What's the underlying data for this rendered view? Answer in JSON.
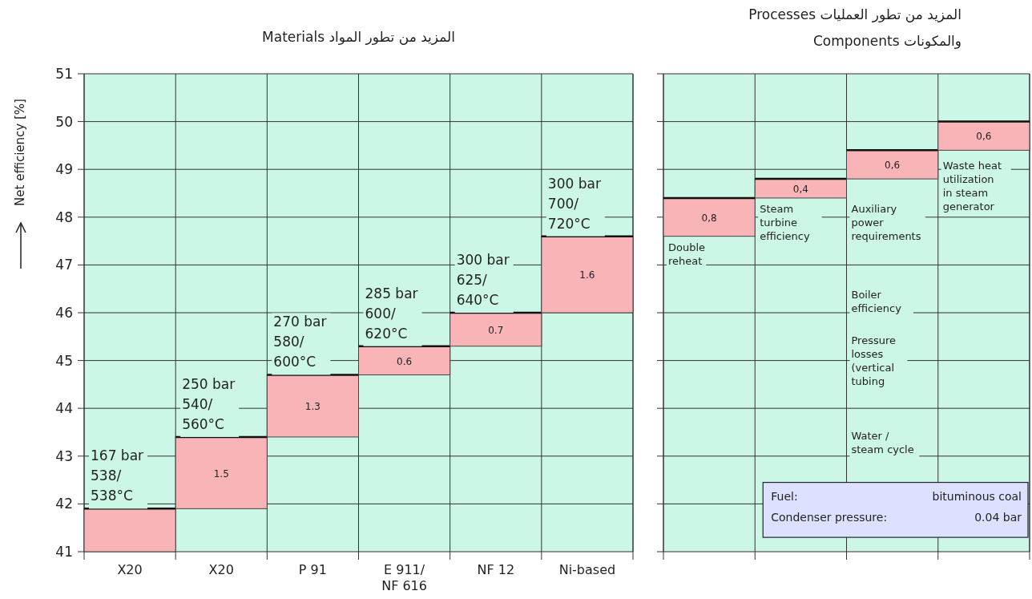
{
  "chart_data": [
    {
      "type": "bar",
      "title": "المزيد من تطور المواد Materials",
      "ylabel": "Net efficiency [%]",
      "categories": [
        "X20",
        "X20",
        "P 91",
        "E 911/ NF 616",
        "NF 12",
        "Ni-based"
      ],
      "values": [
        0.9,
        1.5,
        1.3,
        0.6,
        0.7,
        1.6
      ],
      "base": [
        41,
        41.9,
        43.4,
        44.7,
        45.3,
        46.0
      ],
      "value_labels": [
        null,
        "1.5",
        "1.3",
        "0.6",
        "0.7",
        "1.6"
      ],
      "color": "#f9b4b8",
      "ylim": [
        41,
        51
      ],
      "yticks": [
        41,
        42,
        43,
        44,
        45,
        46,
        47,
        48,
        49,
        50,
        51
      ],
      "grid": true,
      "annotations": [
        {
          "text": "167 bar 538/ 538°C",
          "y": 41.9
        },
        {
          "text": "250 bar 540/ 560°C",
          "y": 43.4
        },
        {
          "text": "270 bar 580/ 600°C",
          "y": 44.7
        },
        {
          "text": "285 bar 600/ 620°C",
          "y": 45.3
        },
        {
          "text": "300 bar 625/ 640°C",
          "y": 46.0
        },
        {
          "text": "300 bar 700/ 720°C",
          "y": 47.6
        }
      ]
    },
    {
      "type": "bar",
      "title": "المزيد من تطور العمليات Processes",
      "subtitle": "والمكونات  Components",
      "categories": [
        null,
        null,
        null,
        null
      ],
      "values": [
        0.8,
        0.4,
        0.6,
        0.6
      ],
      "base": [
        47.6,
        48.4,
        48.8,
        49.4
      ],
      "value_labels": [
        "0,8",
        "0,4",
        "0,6",
        "0,6"
      ],
      "color": "#f9b4b8",
      "ylim": [
        41,
        51
      ],
      "yticks": [
        41,
        42,
        43,
        44,
        45,
        46,
        47,
        48,
        49,
        50,
        51
      ],
      "grid": true,
      "tick_labels": false,
      "annotations": [
        "Double reheat",
        "Steam turbine efficiency",
        "Auxiliary power requirements",
        "Boiler efficiency",
        "Pressure losses (vertical tubing",
        "Water / steam cycle",
        "Waste heat utilization in steam generator",
        "Fuel:",
        "bituminous coal",
        "Condenser pressure:",
        "0.04 bar"
      ]
    }
  ]
}
